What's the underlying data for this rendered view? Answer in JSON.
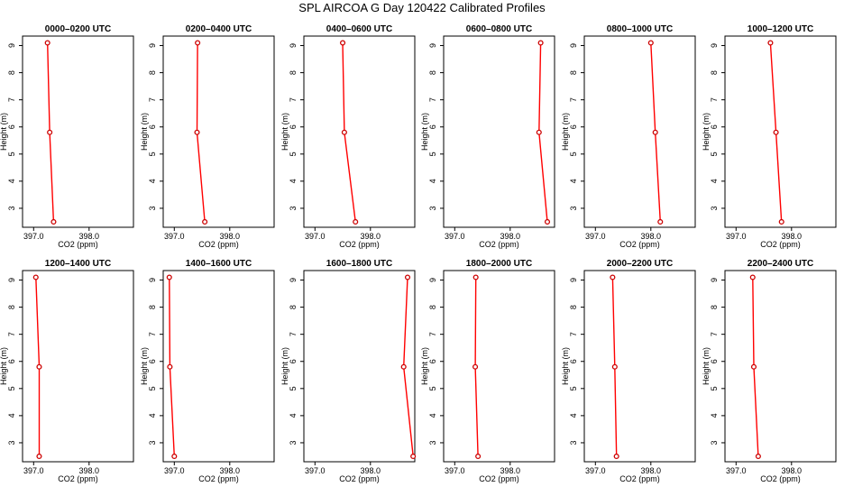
{
  "figure": {
    "title": "SPL AIRCOA G  Day 120422  Calibrated Profiles"
  },
  "style": {
    "line_color": "#ff0000",
    "marker_edge": "#cc0000",
    "axis_color": "#000000"
  },
  "chart_data": [
    {
      "type": "line",
      "title": "0000–0200 UTC",
      "xlabel": "CO2 (ppm)",
      "ylabel": "Height (m)",
      "xlim": [
        396.8,
        398.8
      ],
      "ylim": [
        2.3,
        9.35
      ],
      "xticks": [
        397.0,
        398.0
      ],
      "xtick_labels": [
        "397.0",
        "398.0"
      ],
      "yticks": [
        3,
        4,
        5,
        6,
        7,
        8,
        9
      ],
      "ytick_labels": [
        "3",
        "4",
        "5",
        "6",
        "7",
        "8",
        "9"
      ],
      "series": [
        {
          "x": [
            397.25,
            397.29,
            397.36
          ],
          "y": [
            9.1,
            5.8,
            2.5
          ]
        }
      ]
    },
    {
      "type": "line",
      "title": "0200–0400 UTC",
      "xlabel": "CO2 (ppm)",
      "ylabel": "Height (m)",
      "xlim": [
        396.8,
        398.8
      ],
      "ylim": [
        2.3,
        9.35
      ],
      "xticks": [
        397.0,
        398.0
      ],
      "xtick_labels": [
        "397.0",
        "398.0"
      ],
      "yticks": [
        3,
        4,
        5,
        6,
        7,
        8,
        9
      ],
      "ytick_labels": [
        "3",
        "4",
        "5",
        "6",
        "7",
        "8",
        "9"
      ],
      "series": [
        {
          "x": [
            397.42,
            397.41,
            397.55
          ],
          "y": [
            9.1,
            5.8,
            2.5
          ]
        }
      ]
    },
    {
      "type": "line",
      "title": "0400–0600 UTC",
      "xlabel": "CO2 (ppm)",
      "ylabel": "Height (m)",
      "xlim": [
        396.8,
        398.8
      ],
      "ylim": [
        2.3,
        9.35
      ],
      "xticks": [
        397.0,
        398.0
      ],
      "xtick_labels": [
        "397.0",
        "398.0"
      ],
      "yticks": [
        3,
        4,
        5,
        6,
        7,
        8,
        9
      ],
      "ytick_labels": [
        "3",
        "4",
        "5",
        "6",
        "7",
        "8",
        "9"
      ],
      "series": [
        {
          "x": [
            397.5,
            397.53,
            397.73
          ],
          "y": [
            9.1,
            5.8,
            2.5
          ]
        }
      ]
    },
    {
      "type": "line",
      "title": "0600–0800 UTC",
      "xlabel": "CO2 (ppm)",
      "ylabel": "Height (m)",
      "xlim": [
        396.8,
        398.8
      ],
      "ylim": [
        2.3,
        9.35
      ],
      "xticks": [
        397.0,
        398.0
      ],
      "xtick_labels": [
        "397.0",
        "398.0"
      ],
      "yticks": [
        3,
        4,
        5,
        6,
        7,
        8,
        9
      ],
      "ytick_labels": [
        "3",
        "4",
        "5",
        "6",
        "7",
        "8",
        "9"
      ],
      "series": [
        {
          "x": [
            398.55,
            398.52,
            398.67
          ],
          "y": [
            9.1,
            5.8,
            2.5
          ]
        }
      ]
    },
    {
      "type": "line",
      "title": "0800–1000 UTC",
      "xlabel": "CO2 (ppm)",
      "ylabel": "Height (m)",
      "xlim": [
        396.8,
        398.8
      ],
      "ylim": [
        2.3,
        9.35
      ],
      "xticks": [
        397.0,
        398.0
      ],
      "xtick_labels": [
        "397.0",
        "398.0"
      ],
      "yticks": [
        3,
        4,
        5,
        6,
        7,
        8,
        9
      ],
      "ytick_labels": [
        "3",
        "4",
        "5",
        "6",
        "7",
        "8",
        "9"
      ],
      "series": [
        {
          "x": [
            398.0,
            398.08,
            398.17
          ],
          "y": [
            9.1,
            5.8,
            2.5
          ]
        }
      ]
    },
    {
      "type": "line",
      "title": "1000–1200 UTC",
      "xlabel": "CO2 (ppm)",
      "ylabel": "Height (m)",
      "xlim": [
        396.8,
        398.8
      ],
      "ylim": [
        2.3,
        9.35
      ],
      "xticks": [
        397.0,
        398.0
      ],
      "xtick_labels": [
        "397.0",
        "398.0"
      ],
      "yticks": [
        3,
        4,
        5,
        6,
        7,
        8,
        9
      ],
      "ytick_labels": [
        "3",
        "4",
        "5",
        "6",
        "7",
        "8",
        "9"
      ],
      "series": [
        {
          "x": [
            397.62,
            397.72,
            397.82
          ],
          "y": [
            9.1,
            5.8,
            2.5
          ]
        }
      ]
    },
    {
      "type": "line",
      "title": "1200–1400 UTC",
      "xlabel": "CO2 (ppm)",
      "ylabel": "Height (m)",
      "xlim": [
        396.8,
        398.8
      ],
      "ylim": [
        2.3,
        9.35
      ],
      "xticks": [
        397.0,
        398.0
      ],
      "xtick_labels": [
        "397.0",
        "398.0"
      ],
      "yticks": [
        3,
        4,
        5,
        6,
        7,
        8,
        9
      ],
      "ytick_labels": [
        "3",
        "4",
        "5",
        "6",
        "7",
        "8",
        "9"
      ],
      "series": [
        {
          "x": [
            397.04,
            397.1,
            397.1
          ],
          "y": [
            9.1,
            5.8,
            2.5
          ]
        }
      ]
    },
    {
      "type": "line",
      "title": "1400–1600 UTC",
      "xlabel": "CO2 (ppm)",
      "ylabel": "Height (m)",
      "xlim": [
        396.8,
        398.8
      ],
      "ylim": [
        2.3,
        9.35
      ],
      "xticks": [
        397.0,
        398.0
      ],
      "xtick_labels": [
        "397.0",
        "398.0"
      ],
      "yticks": [
        3,
        4,
        5,
        6,
        7,
        8,
        9
      ],
      "ytick_labels": [
        "3",
        "4",
        "5",
        "6",
        "7",
        "8",
        "9"
      ],
      "series": [
        {
          "x": [
            396.91,
            396.92,
            397.0
          ],
          "y": [
            9.1,
            5.8,
            2.5
          ]
        }
      ]
    },
    {
      "type": "line",
      "title": "1600–1800 UTC",
      "xlabel": "CO2 (ppm)",
      "ylabel": "Height (m)",
      "xlim": [
        396.8,
        398.8
      ],
      "ylim": [
        2.3,
        9.35
      ],
      "xticks": [
        397.0,
        398.0
      ],
      "xtick_labels": [
        "397.0",
        "398.0"
      ],
      "yticks": [
        3,
        4,
        5,
        6,
        7,
        8,
        9
      ],
      "ytick_labels": [
        "3",
        "4",
        "5",
        "6",
        "7",
        "8",
        "9"
      ],
      "series": [
        {
          "x": [
            398.67,
            398.6,
            398.77
          ],
          "y": [
            9.1,
            5.8,
            2.5
          ]
        }
      ]
    },
    {
      "type": "line",
      "title": "1800–2000 UTC",
      "xlabel": "CO2 (ppm)",
      "ylabel": "Height (m)",
      "xlim": [
        396.8,
        398.8
      ],
      "ylim": [
        2.3,
        9.35
      ],
      "xticks": [
        397.0,
        398.0
      ],
      "xtick_labels": [
        "397.0",
        "398.0"
      ],
      "yticks": [
        3,
        4,
        5,
        6,
        7,
        8,
        9
      ],
      "ytick_labels": [
        "3",
        "4",
        "5",
        "6",
        "7",
        "8",
        "9"
      ],
      "series": [
        {
          "x": [
            397.38,
            397.37,
            397.42
          ],
          "y": [
            9.1,
            5.8,
            2.5
          ]
        }
      ]
    },
    {
      "type": "line",
      "title": "2000–2200 UTC",
      "xlabel": "CO2 (ppm)",
      "ylabel": "Height (m)",
      "xlim": [
        396.8,
        398.8
      ],
      "ylim": [
        2.3,
        9.35
      ],
      "xticks": [
        397.0,
        398.0
      ],
      "xtick_labels": [
        "397.0",
        "398.0"
      ],
      "yticks": [
        3,
        4,
        5,
        6,
        7,
        8,
        9
      ],
      "ytick_labels": [
        "3",
        "4",
        "5",
        "6",
        "7",
        "8",
        "9"
      ],
      "series": [
        {
          "x": [
            397.31,
            397.35,
            397.38
          ],
          "y": [
            9.1,
            5.8,
            2.5
          ]
        }
      ]
    },
    {
      "type": "line",
      "title": "2200–2400 UTC",
      "xlabel": "CO2 (ppm)",
      "ylabel": "Height (m)",
      "xlim": [
        396.8,
        398.8
      ],
      "ylim": [
        2.3,
        9.35
      ],
      "xticks": [
        397.0,
        398.0
      ],
      "xtick_labels": [
        "397.0",
        "398.0"
      ],
      "yticks": [
        3,
        4,
        5,
        6,
        7,
        8,
        9
      ],
      "ytick_labels": [
        "3",
        "4",
        "5",
        "6",
        "7",
        "8",
        "9"
      ],
      "series": [
        {
          "x": [
            397.3,
            397.32,
            397.4
          ],
          "y": [
            9.1,
            5.8,
            2.5
          ]
        }
      ]
    }
  ]
}
